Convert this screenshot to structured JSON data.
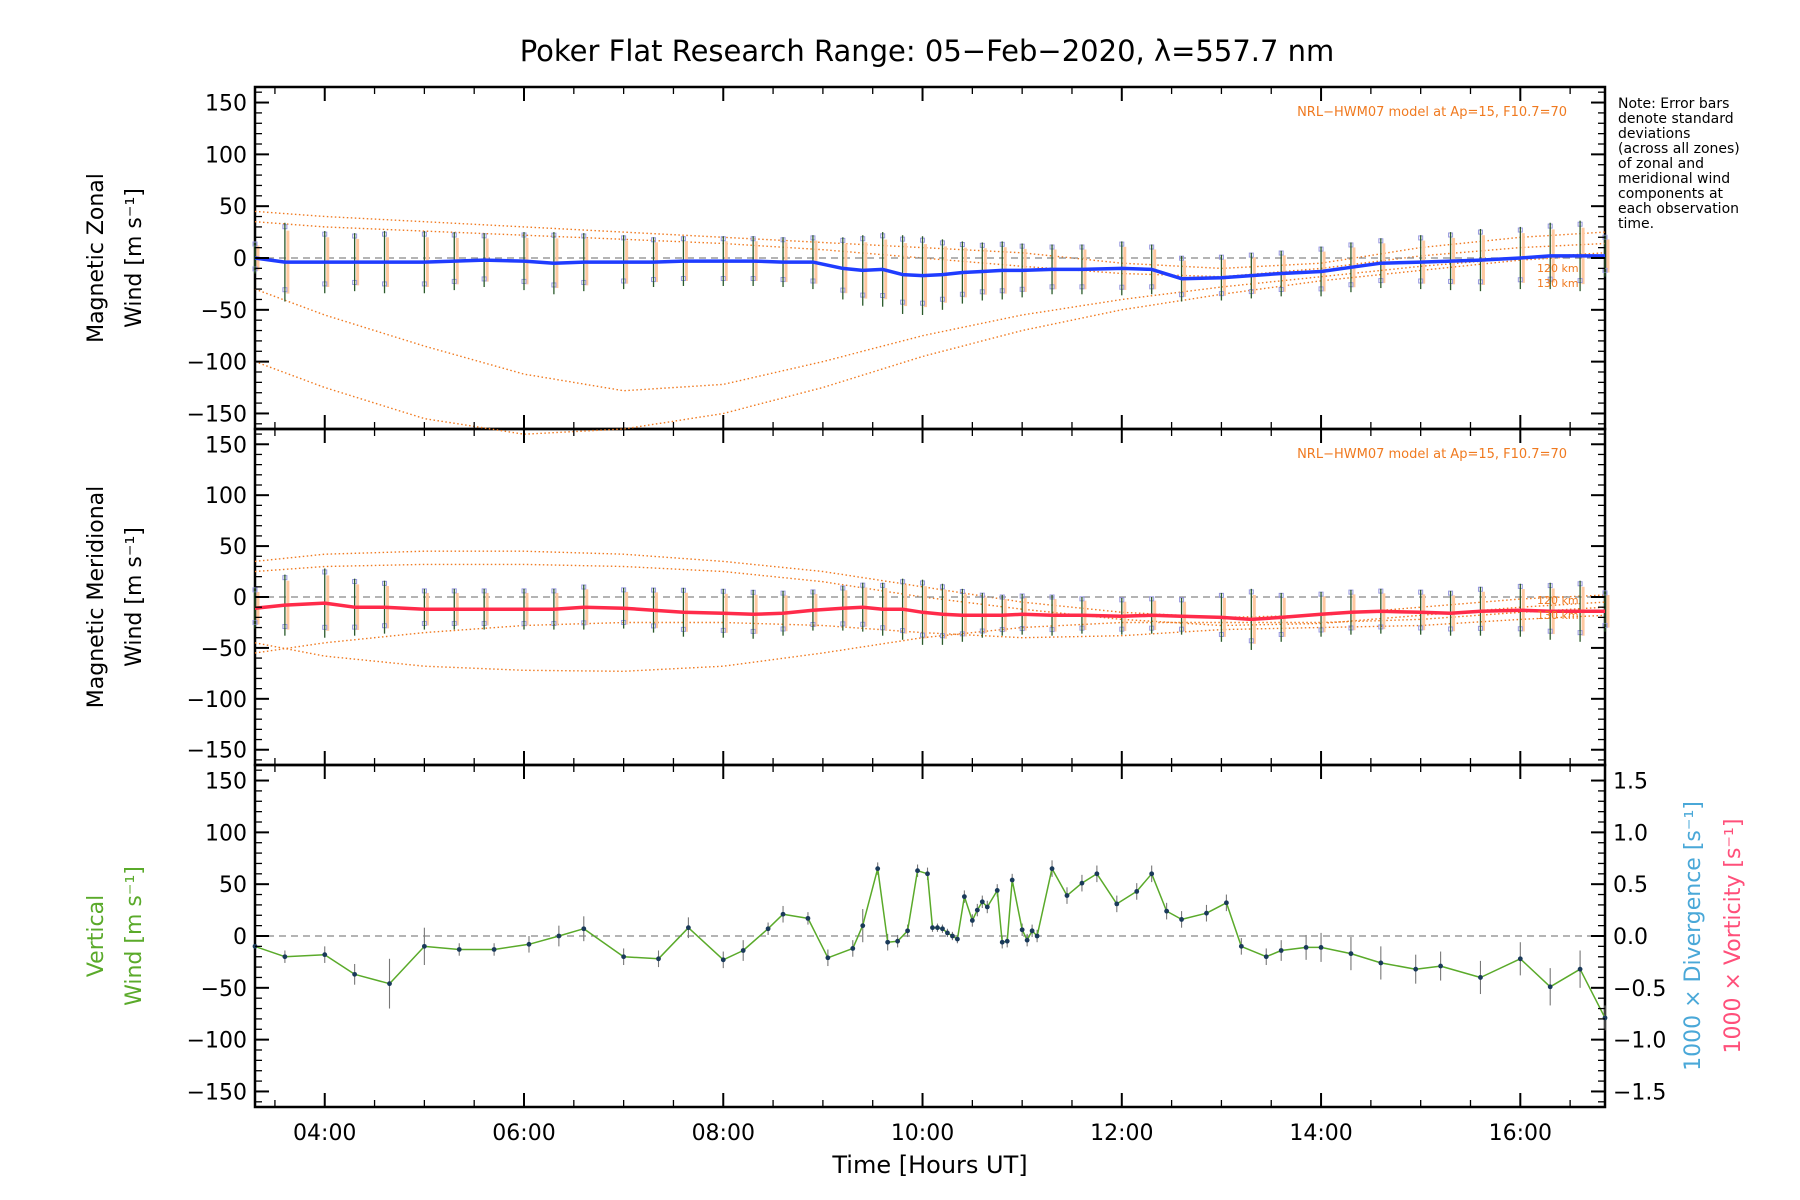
{
  "colors": {
    "zonal": "#1f3cff",
    "meridional": "#ff2b4a",
    "vertical": "#5aaa2a",
    "model": "#f07a20",
    "divergence": "#4aa8d8",
    "vorticity": "#ff4f7a",
    "zone_points": "#9898e0",
    "zone_err": "#ffc8a0",
    "errbar": "#2a5a2a"
  },
  "chart_data": {
    "type": "line",
    "title": "Poker Flat Research Range: 05−Feb−2020, λ=557.7 nm",
    "xlabel": "Time [Hours UT]",
    "xlim": [
      3.3,
      16.85
    ],
    "xtick_labels": [
      "04:00",
      "06:00",
      "08:00",
      "10:00",
      "12:00",
      "14:00",
      "16:00"
    ],
    "xtick_values": [
      4,
      6,
      8,
      10,
      12,
      14,
      16
    ],
    "ytick_labels": [
      "150",
      "100",
      "50",
      "0",
      "−50",
      "−100",
      "−150"
    ],
    "ytick_values": [
      150,
      100,
      50,
      0,
      -50,
      -100,
      -150
    ],
    "right_tick_labels": [
      "1.5",
      "1.0",
      "0.5",
      "0.0",
      "−0.5",
      "−1.0",
      "−1.5"
    ],
    "right_tick_values": [
      1.5,
      1.0,
      0.5,
      0.0,
      -0.5,
      -1.0,
      -1.5
    ],
    "note": [
      "Note: Error bars",
      "denote standard",
      "deviations",
      "(across all zones)",
      "of zonal and",
      "meridional wind",
      "components at",
      "each observation",
      "time."
    ],
    "panels": [
      {
        "ylabel_line1": "Magnetic Zonal",
        "ylabel_line2": "Wind [m s⁻¹]",
        "ylim": [
          -165,
          165
        ],
        "model_label": "NRL−HWM07 model at Ap=15, F10.7=70",
        "model_alt_labels": [
          "120 km",
          "130 km"
        ],
        "series": {
          "name": "zonal",
          "x": [
            3.3,
            3.6,
            4.0,
            4.3,
            4.6,
            5.0,
            5.3,
            5.6,
            6.0,
            6.3,
            6.6,
            7.0,
            7.3,
            7.6,
            8.0,
            8.3,
            8.6,
            8.9,
            9.2,
            9.4,
            9.6,
            9.8,
            10.0,
            10.2,
            10.4,
            10.6,
            10.8,
            11.0,
            11.3,
            11.6,
            12.0,
            12.3,
            12.6,
            13.0,
            13.3,
            13.6,
            14.0,
            14.3,
            14.6,
            15.0,
            15.3,
            15.6,
            16.0,
            16.3,
            16.6,
            16.85
          ],
          "y": [
            0,
            -4,
            -4,
            -4,
            -4,
            -4,
            -3,
            -2,
            -3,
            -5,
            -4,
            -4,
            -4,
            -3,
            -3,
            -3,
            -4,
            -4,
            -10,
            -12,
            -11,
            -16,
            -17,
            -16,
            -14,
            -13,
            -12,
            -12,
            -11,
            -11,
            -10,
            -11,
            -20,
            -19,
            -17,
            -15,
            -13,
            -9,
            -5,
            -4,
            -3,
            -2,
            0,
            2,
            2,
            2
          ],
          "err": [
            15,
            38,
            30,
            28,
            30,
            30,
            28,
            26,
            28,
            30,
            28,
            26,
            24,
            24,
            24,
            24,
            24,
            26,
            30,
            34,
            36,
            38,
            38,
            34,
            30,
            28,
            28,
            26,
            24,
            24,
            26,
            24,
            22,
            22,
            22,
            22,
            24,
            24,
            24,
            26,
            28,
            30,
            30,
            32,
            34,
            20
          ]
        },
        "model_curves": [
          {
            "x": [
              3.3,
              4.0,
              5.0,
              6.0,
              7.0,
              8.0,
              9.0,
              10.0,
              11.0,
              12.0,
              13.0,
              14.0,
              15.0,
              16.0,
              16.85
            ],
            "y": [
              -30,
              -55,
              -85,
              -112,
              -128,
              -122,
              -100,
              -75,
              -55,
              -40,
              -28,
              -18,
              -8,
              0,
              5
            ]
          },
          {
            "x": [
              3.3,
              4.0,
              5.0,
              6.0,
              7.0,
              8.0,
              9.0,
              10.0,
              11.0,
              12.0,
              13.0,
              14.0,
              15.0,
              16.0,
              16.85
            ],
            "y": [
              -100,
              -125,
              -155,
              -170,
              -165,
              -150,
              -125,
              -95,
              -70,
              -50,
              -35,
              -22,
              -12,
              -2,
              3
            ]
          },
          {
            "x": [
              3.3,
              4.0,
              5.0,
              6.0,
              7.0,
              8.0,
              9.0,
              10.0,
              11.0,
              12.0,
              13.0,
              14.0,
              15.0,
              16.0,
              16.85
            ],
            "y": [
              45,
              40,
              35,
              30,
              25,
              20,
              15,
              10,
              5,
              -5,
              -10,
              -5,
              10,
              20,
              25
            ]
          },
          {
            "x": [
              3.3,
              4.0,
              5.0,
              6.0,
              7.0,
              8.0,
              9.0,
              10.0,
              11.0,
              12.0,
              13.0,
              14.0,
              15.0,
              16.0,
              16.85
            ],
            "y": [
              35,
              30,
              26,
              22,
              18,
              14,
              8,
              0,
              -8,
              -15,
              -18,
              -10,
              2,
              10,
              14
            ]
          }
        ]
      },
      {
        "ylabel_line1": "Magnetic Meridional",
        "ylabel_line2": "Wind [m s⁻¹]",
        "ylim": [
          -165,
          165
        ],
        "model_label": "NRL−HWM07 model at Ap=15, F10.7=70",
        "model_alt_labels": [
          "120 km",
          "130 km"
        ],
        "series": {
          "name": "meridional",
          "x": [
            3.3,
            3.6,
            4.0,
            4.3,
            4.6,
            5.0,
            5.3,
            5.6,
            6.0,
            6.3,
            6.6,
            7.0,
            7.3,
            7.6,
            8.0,
            8.3,
            8.6,
            8.9,
            9.2,
            9.4,
            9.6,
            9.8,
            10.0,
            10.2,
            10.4,
            10.6,
            10.8,
            11.0,
            11.3,
            11.6,
            12.0,
            12.3,
            12.6,
            13.0,
            13.3,
            13.6,
            14.0,
            14.3,
            14.6,
            15.0,
            15.3,
            15.6,
            16.0,
            16.3,
            16.6,
            16.85
          ],
          "y": [
            -11,
            -8,
            -6,
            -10,
            -10,
            -12,
            -12,
            -12,
            -12,
            -12,
            -10,
            -11,
            -13,
            -15,
            -16,
            -17,
            -16,
            -13,
            -11,
            -10,
            -12,
            -12,
            -15,
            -17,
            -18,
            -18,
            -18,
            -17,
            -18,
            -18,
            -19,
            -18,
            -19,
            -20,
            -22,
            -20,
            -17,
            -15,
            -14,
            -15,
            -16,
            -14,
            -13,
            -14,
            -14,
            -14
          ],
          "err": [
            20,
            30,
            34,
            28,
            26,
            20,
            20,
            20,
            20,
            20,
            22,
            20,
            22,
            24,
            24,
            24,
            22,
            20,
            22,
            24,
            26,
            30,
            32,
            30,
            26,
            22,
            20,
            20,
            20,
            18,
            18,
            18,
            18,
            24,
            30,
            24,
            22,
            22,
            22,
            22,
            22,
            24,
            26,
            28,
            30,
            20
          ]
        },
        "model_curves": [
          {
            "x": [
              3.3,
              4.0,
              5.0,
              6.0,
              7.0,
              8.0,
              9.0,
              10.0,
              11.0,
              12.0,
              13.0,
              14.0,
              15.0,
              16.0,
              16.85
            ],
            "y": [
              -45,
              -58,
              -68,
              -72,
              -73,
              -68,
              -55,
              -40,
              -30,
              -25,
              -25,
              -25,
              -22,
              -15,
              -10
            ]
          },
          {
            "x": [
              3.3,
              4.0,
              5.0,
              6.0,
              7.0,
              8.0,
              9.0,
              10.0,
              11.0,
              12.0,
              13.0,
              14.0,
              15.0,
              16.0,
              16.85
            ],
            "y": [
              -55,
              -45,
              -35,
              -28,
              -25,
              -25,
              -28,
              -35,
              -40,
              -38,
              -32,
              -30,
              -28,
              -22,
              -18
            ]
          },
          {
            "x": [
              3.3,
              4.0,
              5.0,
              6.0,
              7.0,
              8.0,
              9.0,
              10.0,
              11.0,
              12.0,
              13.0,
              14.0,
              15.0,
              16.0,
              16.85
            ],
            "y": [
              35,
              42,
              45,
              45,
              42,
              35,
              25,
              10,
              -5,
              -15,
              -20,
              -18,
              -10,
              -2,
              2
            ]
          },
          {
            "x": [
              3.3,
              4.0,
              5.0,
              6.0,
              7.0,
              8.0,
              9.0,
              10.0,
              11.0,
              12.0,
              13.0,
              14.0,
              15.0,
              16.0,
              16.85
            ],
            "y": [
              25,
              30,
              32,
              32,
              30,
              25,
              15,
              0,
              -12,
              -22,
              -28,
              -26,
              -18,
              -10,
              -5
            ]
          }
        ]
      },
      {
        "ylabel_line1": "Vertical",
        "ylabel_line2": "Wind [m s⁻¹]",
        "right_label1": "1000 × Divergence [s⁻¹]",
        "right_label2": "1000 × Vorticity [s⁻¹]",
        "ylim": [
          -165,
          165
        ],
        "right_ylim": [
          -1.65,
          1.65
        ],
        "series": {
          "name": "vertical",
          "x": [
            3.3,
            3.6,
            4.0,
            4.3,
            4.65,
            5.0,
            5.35,
            5.7,
            6.05,
            6.35,
            6.6,
            7.0,
            7.35,
            7.65,
            8.0,
            8.2,
            8.45,
            8.6,
            8.85,
            9.05,
            9.3,
            9.4,
            9.55,
            9.65,
            9.75,
            9.85,
            9.95,
            10.05,
            10.1,
            10.15,
            10.2,
            10.25,
            10.3,
            10.35,
            10.42,
            10.5,
            10.55,
            10.6,
            10.65,
            10.75,
            10.8,
            10.85,
            10.9,
            11.0,
            11.05,
            11.1,
            11.15,
            11.3,
            11.45,
            11.6,
            11.75,
            11.95,
            12.15,
            12.3,
            12.45,
            12.6,
            12.85,
            13.05,
            13.2,
            13.45,
            13.6,
            13.85,
            14.0,
            14.3,
            14.6,
            14.95,
            15.2,
            15.6,
            16.0,
            16.3,
            16.6,
            16.85
          ],
          "y": [
            -10,
            -20,
            -18,
            -37,
            -46,
            -10,
            -13,
            -13,
            -8,
            0,
            7,
            -20,
            -22,
            8,
            -23,
            -14,
            7,
            21,
            17,
            -21,
            -12,
            10,
            65,
            -6,
            -5,
            5,
            63,
            60,
            8,
            8,
            7,
            3,
            0,
            -3,
            38,
            15,
            25,
            33,
            28,
            44,
            -6,
            -5,
            54,
            6,
            -4,
            5,
            0,
            65,
            39,
            51,
            60,
            31,
            43,
            60,
            24,
            16,
            22,
            32,
            -10,
            -20,
            -14,
            -11,
            -11,
            -17,
            -26,
            -32,
            -29,
            -40,
            -22,
            -49,
            -32,
            -79
          ],
          "err": [
            0,
            6,
            8,
            10,
            24,
            18,
            6,
            6,
            8,
            10,
            12,
            8,
            8,
            10,
            8,
            10,
            6,
            8,
            6,
            8,
            8,
            16,
            6,
            8,
            6,
            6,
            6,
            6,
            4,
            4,
            4,
            4,
            4,
            4,
            6,
            6,
            6,
            6,
            6,
            6,
            6,
            6,
            6,
            6,
            6,
            6,
            6,
            8,
            8,
            8,
            8,
            8,
            8,
            8,
            8,
            8,
            8,
            8,
            8,
            8,
            10,
            12,
            14,
            16,
            16,
            14,
            14,
            16,
            16,
            18,
            18,
            12
          ]
        }
      }
    ]
  }
}
